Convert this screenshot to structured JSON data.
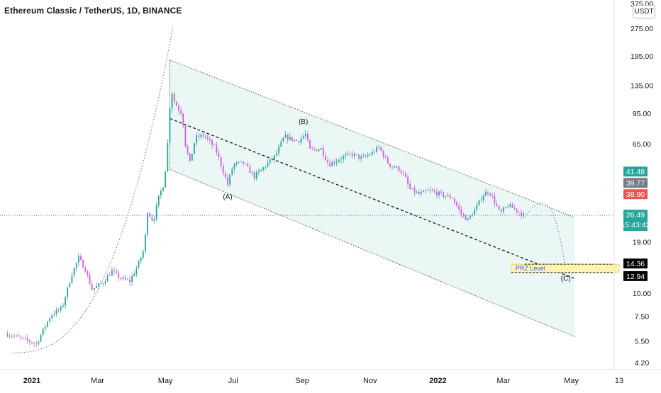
{
  "header": {
    "title": "Ethereum Classic / TetherUS, 1D, BINANCE",
    "currency": "USDT"
  },
  "chart_data": {
    "type": "candlestick",
    "y_scale": "log",
    "ylim": [
      3.9,
      400
    ],
    "y_ticks": [
      {
        "label": "375.00",
        "value": 375
      },
      {
        "label": "275.00",
        "value": 275
      },
      {
        "label": "195.00",
        "value": 195
      },
      {
        "label": "135.00",
        "value": 135
      },
      {
        "label": "95.00",
        "value": 95
      },
      {
        "label": "65.00",
        "value": 65
      },
      {
        "label": "19.00",
        "value": 19
      },
      {
        "label": "10.00",
        "value": 10
      },
      {
        "label": "7.50",
        "value": 7.5
      },
      {
        "label": "5.50",
        "value": 5.5
      },
      {
        "label": "4.20",
        "value": 4.2
      }
    ],
    "x_ticks": [
      {
        "label": "2021",
        "date": "2021-01-01",
        "bold": true
      },
      {
        "label": "Mar",
        "date": "2021-03-01",
        "bold": false
      },
      {
        "label": "May",
        "date": "2021-05-01",
        "bold": false
      },
      {
        "label": "Jul",
        "date": "2021-07-01",
        "bold": false
      },
      {
        "label": "Sep",
        "date": "2021-09-01",
        "bold": false
      },
      {
        "label": "Nov",
        "date": "2021-11-01",
        "bold": false
      },
      {
        "label": "2022",
        "date": "2022-01-01",
        "bold": true
      },
      {
        "label": "Mar",
        "date": "2022-03-01",
        "bold": false
      },
      {
        "label": "May",
        "date": "2022-05-01",
        "bold": false
      },
      {
        "label": "13",
        "date": "2022-06-13",
        "bold": false
      }
    ],
    "price_path": [
      [
        "2020-12-10",
        6.0
      ],
      [
        "2020-12-25",
        5.6
      ],
      [
        "2021-01-05",
        5.3
      ],
      [
        "2021-01-18",
        7.6
      ],
      [
        "2021-01-28",
        8.3
      ],
      [
        "2021-02-06",
        12.8
      ],
      [
        "2021-02-12",
        15.5
      ],
      [
        "2021-02-18",
        13.5
      ],
      [
        "2021-02-24",
        10.5
      ],
      [
        "2021-03-05",
        11.3
      ],
      [
        "2021-03-14",
        13.2
      ],
      [
        "2021-03-22",
        12.0
      ],
      [
        "2021-03-30",
        11.6
      ],
      [
        "2021-04-07",
        14.5
      ],
      [
        "2021-04-12",
        17.5
      ],
      [
        "2021-04-15",
        28.0
      ],
      [
        "2021-04-20",
        24.5
      ],
      [
        "2021-04-25",
        33.0
      ],
      [
        "2021-04-30",
        40.0
      ],
      [
        "2021-05-03",
        65.0
      ],
      [
        "2021-05-06",
        130.0
      ],
      [
        "2021-05-09",
        110.0
      ],
      [
        "2021-05-13",
        100.0
      ],
      [
        "2021-05-16",
        95.0
      ],
      [
        "2021-05-19",
        64.0
      ],
      [
        "2021-05-23",
        51.0
      ],
      [
        "2021-05-28",
        70.0
      ],
      [
        "2021-06-05",
        72.0
      ],
      [
        "2021-06-15",
        61.0
      ],
      [
        "2021-06-21",
        48.0
      ],
      [
        "2021-06-26",
        39.0
      ],
      [
        "2021-07-01",
        50.0
      ],
      [
        "2021-07-10",
        51.0
      ],
      [
        "2021-07-20",
        43.0
      ],
      [
        "2021-07-28",
        48.0
      ],
      [
        "2021-08-08",
        56.0
      ],
      [
        "2021-08-16",
        71.0
      ],
      [
        "2021-08-28",
        67.0
      ],
      [
        "2021-09-04",
        73.0
      ],
      [
        "2021-09-08",
        60.0
      ],
      [
        "2021-09-18",
        61.0
      ],
      [
        "2021-09-25",
        50.0
      ],
      [
        "2021-10-05",
        54.0
      ],
      [
        "2021-10-15",
        57.0
      ],
      [
        "2021-10-25",
        54.0
      ],
      [
        "2021-11-03",
        58.0
      ],
      [
        "2021-11-09",
        62.0
      ],
      [
        "2021-11-18",
        50.0
      ],
      [
        "2021-11-28",
        47.0
      ],
      [
        "2021-12-04",
        41.0
      ],
      [
        "2021-12-06",
        37.0
      ],
      [
        "2021-12-15",
        34.5
      ],
      [
        "2021-12-25",
        36.0
      ],
      [
        "2022-01-06",
        34.0
      ],
      [
        "2022-01-14",
        33.0
      ],
      [
        "2022-01-22",
        27.0
      ],
      [
        "2022-01-28",
        25.0
      ],
      [
        "2022-02-05",
        29.5
      ],
      [
        "2022-02-10",
        34.0
      ],
      [
        "2022-02-16",
        36.0
      ],
      [
        "2022-02-22",
        30.5
      ],
      [
        "2022-02-26",
        27.0
      ],
      [
        "2022-03-05",
        30.0
      ],
      [
        "2022-03-12",
        28.5
      ],
      [
        "2022-03-19",
        26.5
      ]
    ],
    "wave_labels": [
      {
        "text": "(A)",
        "date": "2021-06-26",
        "price": 32.5
      },
      {
        "text": "(B)",
        "date": "2021-09-02",
        "price": 83.0
      },
      {
        "text": "(C)",
        "date": "2022-04-26",
        "price": 11.7
      }
    ],
    "channel": {
      "upper": [
        [
          "2021-05-05",
          185.0
        ],
        [
          "2022-05-04",
          25.8
        ]
      ],
      "lower": [
        [
          "2021-05-05",
          47.0
        ],
        [
          "2022-05-04",
          5.8
        ]
      ],
      "middle": [
        [
          "2021-05-05",
          89.0
        ],
        [
          "2022-05-04",
          12.0
        ]
      ]
    },
    "prz": {
      "label": "PRZ Level",
      "low": 12.94,
      "high": 14.36,
      "from": "2022-03-08",
      "to": "2022-06-13"
    },
    "price_tags": [
      {
        "label": "41.48",
        "value": 41.48,
        "color": "#26a69a"
      },
      {
        "label": "39.77",
        "value": 39.77,
        "color": "#787b86"
      },
      {
        "label": "38.90",
        "value": 38.9,
        "color": "#ef5350"
      },
      {
        "label": "26.49",
        "value": 26.49,
        "color": "#26a69a",
        "sub": "15:43:42"
      },
      {
        "label": "14.36",
        "value": 14.36,
        "color": "#000000"
      },
      {
        "label": "12.94",
        "value": 12.94,
        "color": "#000000"
      }
    ],
    "last_price": 26.49,
    "colors": {
      "up": "#26a69a",
      "down": "#d05ce3",
      "channel_fill": "#e8f6f3",
      "prz_fill": "#fff5b1",
      "dotted": "#5c6bc0"
    }
  }
}
